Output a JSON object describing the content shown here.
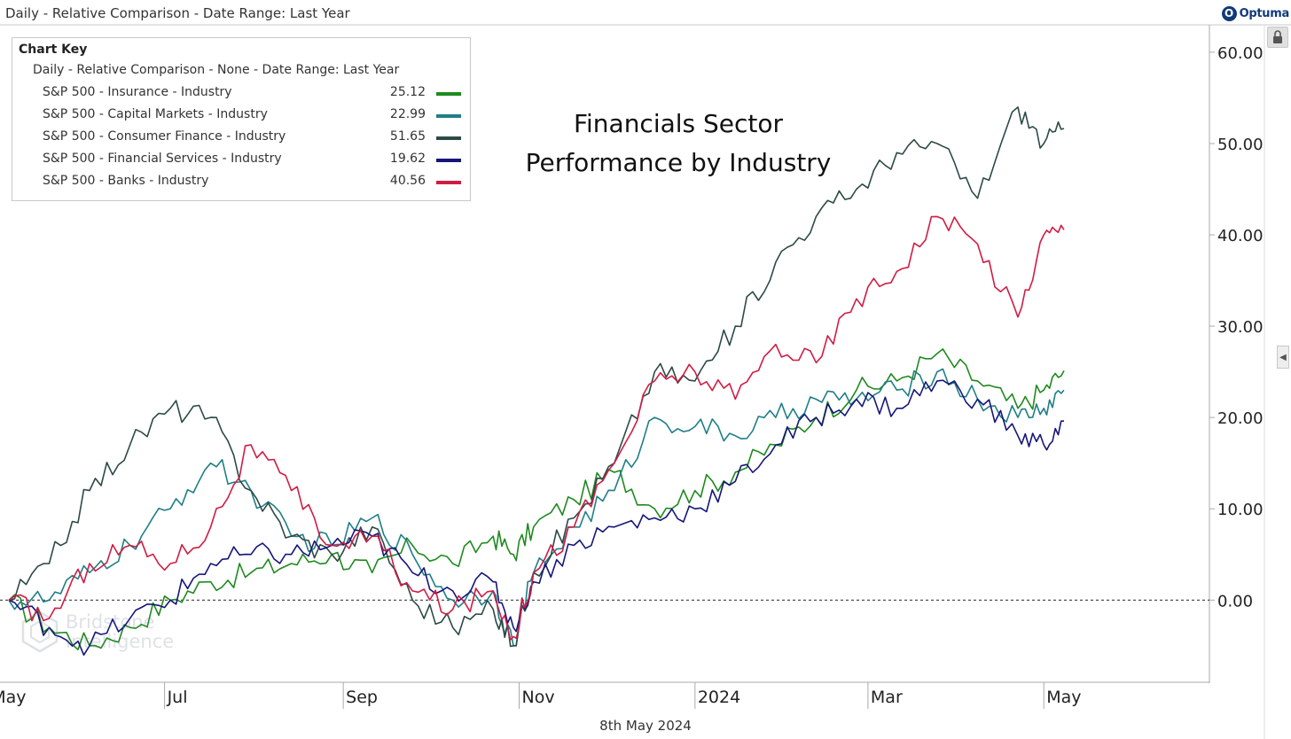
{
  "header": {
    "title": "Daily - Relative Comparison - Date Range: Last Year",
    "brand": "Optuma"
  },
  "legend": {
    "title": "Chart Key",
    "subtitle": "Daily - Relative Comparison - None - Date Range: Last Year"
  },
  "headline": {
    "line1": "Financials Sector",
    "line2": "Performance by Industry"
  },
  "watermark": {
    "line1": "Bridstone",
    "line2": "Intelligence"
  },
  "footer": {
    "date": "8th May 2024"
  },
  "colors": {
    "insurance": "#1e8a1e",
    "capital_markets": "#1f7f86",
    "consumer_finance": "#2c4a46",
    "financial_services": "#16167a",
    "banks": "#d01c44",
    "zero_line": "#222222",
    "axis": "#aaaaaa"
  },
  "icons": [
    "optuma-logo-icon",
    "lock-icon",
    "collapse-arrow-icon"
  ],
  "chart_data": {
    "type": "line",
    "y_axis_position": "right",
    "ylim": [
      -9,
      63
    ],
    "yticks": [
      "60.00",
      "50.00",
      "40.00",
      "30.00",
      "20.00",
      "10.00",
      "0.00"
    ],
    "xticks": [
      "May",
      "Jul",
      "Sep",
      "Nov",
      "2024",
      "Mar",
      "May"
    ],
    "x": [
      "2023-05-08",
      "2023-05-22",
      "2023-06-05",
      "2023-06-19",
      "2023-07-03",
      "2023-07-17",
      "2023-07-31",
      "2023-08-14",
      "2023-08-28",
      "2023-09-11",
      "2023-09-25",
      "2023-10-09",
      "2023-10-23",
      "2023-10-30",
      "2023-11-06",
      "2023-11-20",
      "2023-12-04",
      "2023-12-18",
      "2024-01-01",
      "2024-01-15",
      "2024-01-29",
      "2024-02-12",
      "2024-02-26",
      "2024-03-11",
      "2024-03-25",
      "2024-04-08",
      "2024-04-22",
      "2024-05-01",
      "2024-05-08"
    ],
    "baseline": 0,
    "series": [
      {
        "name": "S&P 500 - Insurance - Industry",
        "last": "25.12",
        "color_key": "insurance",
        "values": [
          0,
          -3,
          -5,
          -3,
          0,
          2,
          3,
          4,
          5,
          3,
          6,
          4,
          7,
          5,
          8,
          11,
          14,
          10,
          12,
          14,
          17,
          20,
          23,
          24,
          27,
          24,
          21,
          23,
          25.12
        ]
      },
      {
        "name": "S&P 500 - Capital Markets - Industry",
        "last": "22.99",
        "color_key": "capital_markets",
        "values": [
          0,
          0,
          3,
          6,
          10,
          15,
          12,
          7,
          6,
          9,
          5,
          0,
          1,
          -5,
          3,
          8,
          12,
          20,
          19,
          18,
          20,
          22,
          22,
          23,
          25,
          22,
          20,
          21,
          22.99
        ]
      },
      {
        "name": "S&P 500 - Consumer Finance - Industry",
        "last": "51.65",
        "color_key": "consumer_finance",
        "values": [
          0,
          4,
          12,
          17,
          21,
          20,
          12,
          7,
          5,
          8,
          0,
          -3,
          -1,
          -5,
          3,
          9,
          15,
          25,
          24,
          30,
          37,
          42,
          45,
          49,
          50,
          44,
          54,
          50,
          51.65
        ]
      },
      {
        "name": "S&P 500 - Financial Services - Industry",
        "last": "19.62",
        "color_key": "financial_services",
        "values": [
          0,
          -3,
          -5,
          -2,
          0,
          4,
          5,
          5,
          6,
          7,
          3,
          1,
          2,
          -3,
          2,
          6,
          8,
          9,
          10,
          13,
          17,
          20,
          22,
          21,
          24,
          22,
          18,
          17,
          19.62
        ]
      },
      {
        "name": "S&P 500 - Banks - Industry",
        "last": "40.56",
        "color_key": "banks",
        "values": [
          0,
          -2,
          4,
          6,
          4,
          8,
          17,
          12,
          6,
          7,
          1,
          -1,
          1,
          -4,
          3,
          8,
          15,
          24,
          25,
          22,
          28,
          26,
          33,
          36,
          42,
          39,
          31,
          40,
          40.56
        ]
      }
    ]
  }
}
